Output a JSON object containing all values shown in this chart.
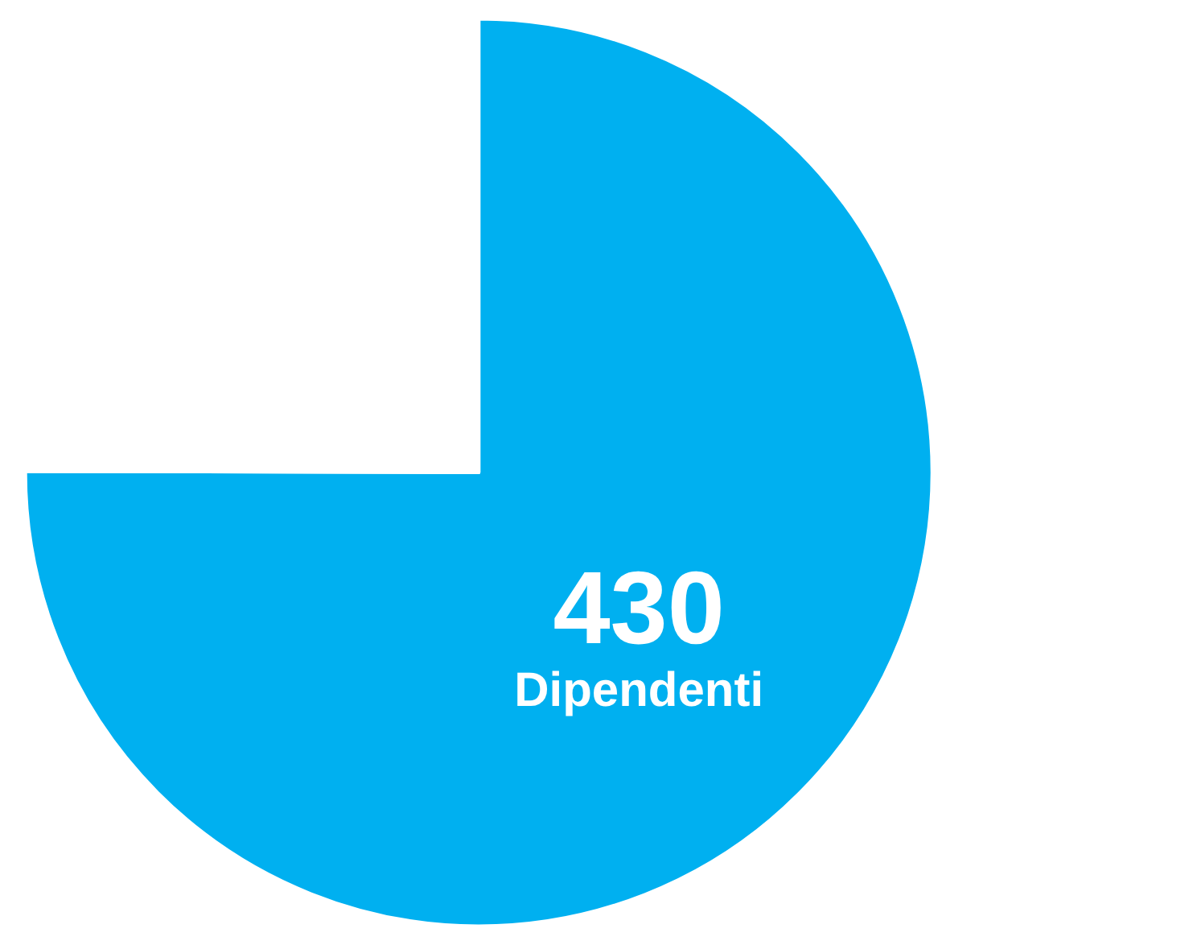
{
  "chart_data": {
    "type": "pie",
    "categories": [
      null,
      null
    ],
    "values": [
      430,
      143
    ],
    "colors": [
      "#00b0f0",
      "#ffffff"
    ],
    "value_labels": [
      "430\nDipendenti",
      null
    ],
    "legend": false
  }
}
